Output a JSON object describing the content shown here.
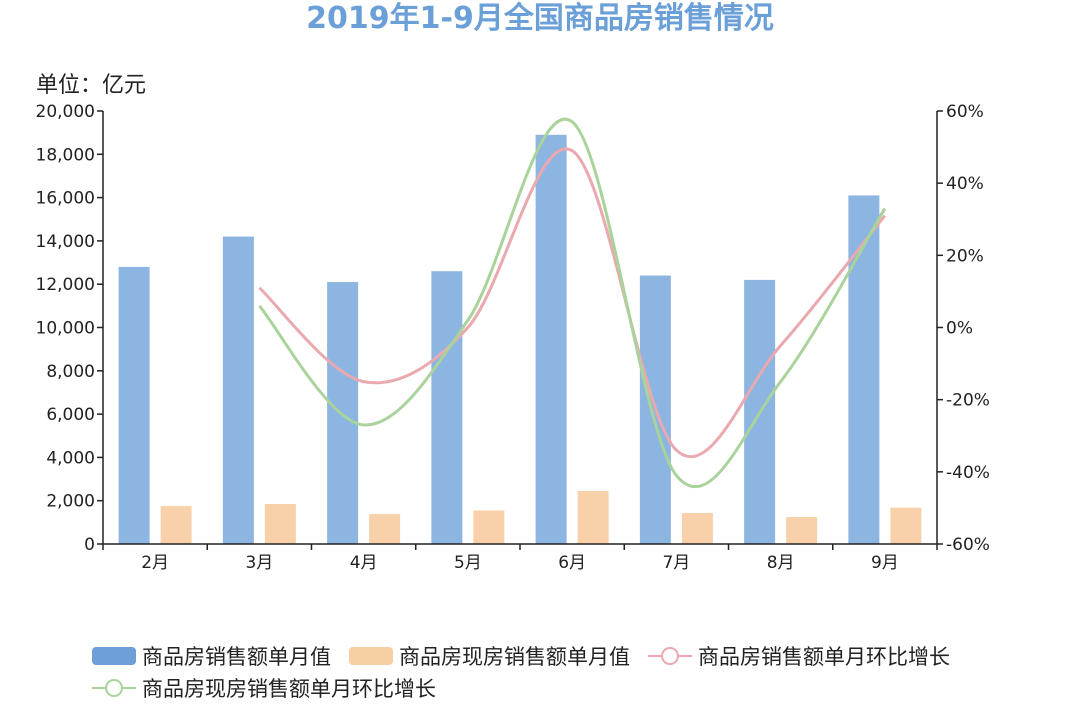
{
  "chart_data": {
    "type": "bar",
    "title": "2019年1-9月全国商品房销售情况",
    "unit_label": "单位：亿元",
    "categories": [
      "2月",
      "3月",
      "4月",
      "5月",
      "6月",
      "7月",
      "8月",
      "9月"
    ],
    "left_axis": {
      "ylim": [
        0,
        20000
      ],
      "ticks": [
        "0",
        "2,000",
        "4,000",
        "6,000",
        "8,000",
        "10,000",
        "12,000",
        "14,000",
        "16,000",
        "18,000",
        "20,000"
      ]
    },
    "right_axis": {
      "ylim": [
        -60,
        60
      ],
      "ticks": [
        "-60%",
        "-40%",
        "-20%",
        "0%",
        "20%",
        "40%",
        "60%"
      ]
    },
    "series": [
      {
        "name": "商品房销售额单月值",
        "kind": "bar",
        "axis": "left",
        "color": "#8db5e2",
        "values": [
          12800,
          14200,
          12100,
          12600,
          18900,
          12400,
          12200,
          16100
        ]
      },
      {
        "name": "商品房现房销售额单月值",
        "kind": "bar",
        "axis": "left",
        "color": "#f8d1aa",
        "values": [
          1750,
          1850,
          1380,
          1550,
          2450,
          1430,
          1250,
          1680
        ]
      },
      {
        "name": "商品房销售额单月环比增长",
        "kind": "line",
        "axis": "right",
        "color": "#eaa9ae",
        "values": [
          null,
          11,
          -15,
          0,
          49,
          -34,
          -5,
          31
        ]
      },
      {
        "name": "商品房现房销售额单月环比增长",
        "kind": "line",
        "axis": "right",
        "color": "#a9d39b",
        "values": [
          null,
          6,
          -27,
          2,
          57,
          -41,
          -15,
          33
        ]
      }
    ],
    "legend": "bottom"
  }
}
